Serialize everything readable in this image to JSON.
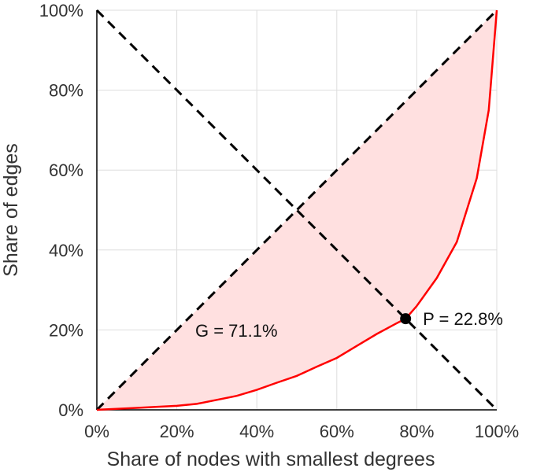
{
  "chart_data": {
    "type": "area",
    "xlabel": "Share of nodes with smallest degrees",
    "ylabel": "Share of edges",
    "xlim": [
      0,
      100
    ],
    "ylim": [
      0,
      100
    ],
    "x_ticks": [
      "0%",
      "20%",
      "40%",
      "60%",
      "80%",
      "100%"
    ],
    "y_ticks": [
      "0%",
      "20%",
      "40%",
      "60%",
      "80%",
      "100%"
    ],
    "grid": true,
    "colors": {
      "curve": "#ff0000",
      "fill": "#ffe0e0",
      "reference_lines": "#000000",
      "grid": "#dddddd"
    },
    "lorenz_curve": {
      "x": [
        0,
        10,
        20,
        25,
        30,
        35,
        40,
        45,
        50,
        55,
        60,
        65,
        70,
        75,
        77.2,
        80,
        85,
        90,
        95,
        98,
        100
      ],
      "y": [
        0,
        0.5,
        1,
        1.5,
        2.5,
        3.5,
        5,
        6.8,
        8.5,
        10.8,
        13,
        16,
        19,
        21.7,
        22.8,
        26,
        33,
        42,
        58,
        75,
        100
      ]
    },
    "equality_line": {
      "x": [
        0,
        100
      ],
      "y": [
        0,
        100
      ]
    },
    "anti_diagonal": {
      "x": [
        0,
        100
      ],
      "y": [
        100,
        0
      ]
    },
    "point": {
      "x": 77.2,
      "y": 22.8
    },
    "annotations": {
      "gini": "G = 71.1%",
      "p": "P = 22.8%"
    }
  }
}
